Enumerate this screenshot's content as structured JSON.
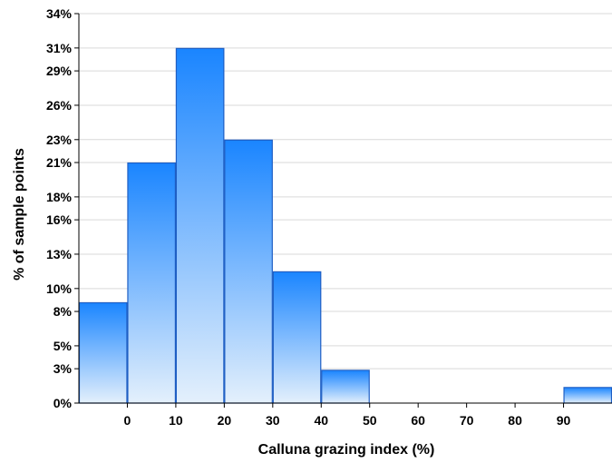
{
  "chart_data": {
    "type": "bar",
    "title": "",
    "xlabel": "Calluna grazing index (%)",
    "ylabel": "% of sample points",
    "bins": [
      {
        "from": -10,
        "to": 0,
        "value": 8.8
      },
      {
        "from": 0,
        "to": 10,
        "value": 21.0
      },
      {
        "from": 10,
        "to": 20,
        "value": 31.0
      },
      {
        "from": 20,
        "to": 30,
        "value": 23.0
      },
      {
        "from": 30,
        "to": 40,
        "value": 11.5
      },
      {
        "from": 40,
        "to": 50,
        "value": 2.9
      },
      {
        "from": 50,
        "to": 60,
        "value": 0
      },
      {
        "from": 60,
        "to": 70,
        "value": 0
      },
      {
        "from": 70,
        "to": 80,
        "value": 0
      },
      {
        "from": 80,
        "to": 90,
        "value": 0
      },
      {
        "from": 90,
        "to": 100,
        "value": 1.4
      }
    ],
    "xlim": [
      -10,
      100
    ],
    "ylim": [
      0,
      34
    ],
    "x_ticks": [
      0,
      10,
      20,
      30,
      40,
      50,
      60,
      70,
      80,
      90
    ],
    "x_tick_labels": [
      "0",
      "10",
      "20",
      "30",
      "40",
      "50",
      "60",
      "70",
      "80",
      "90"
    ],
    "y_ticks": [
      0,
      3,
      5,
      8,
      10,
      13,
      16,
      18,
      21,
      23,
      26,
      29,
      31,
      34
    ],
    "y_tick_labels": [
      "0%",
      "3%",
      "5%",
      "8%",
      "10%",
      "13%",
      "16%",
      "18%",
      "21%",
      "23%",
      "26%",
      "29%",
      "31%",
      "34%"
    ],
    "grid": true,
    "colors": {
      "bar_top": "#1a85ff",
      "bar_bottom": "#e4f0fc",
      "bar_edge": "#1f5fc4",
      "grid": "#d9d9d9",
      "axis": "#000000"
    }
  }
}
